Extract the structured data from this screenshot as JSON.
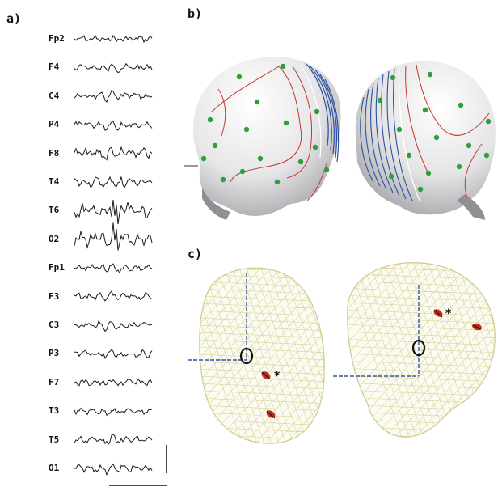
{
  "figure": {
    "panel_a_label": "a)",
    "panel_b_label": "b)",
    "panel_c_label": "c)",
    "asterisk": "*"
  },
  "eeg": {
    "channels": [
      "Fp2",
      "F4",
      "C4",
      "P4",
      "F8",
      "T4",
      "T6",
      "O2",
      "Fp1",
      "F3",
      "C3",
      "P3",
      "F7",
      "T3",
      "T5",
      "O1"
    ],
    "trace_color": "#1a1a1a"
  },
  "colors": {
    "contour_red": "#c0392b",
    "contour_blue": "#2b4fa0",
    "electrode_green": "#2e9e3a",
    "mesh": "#d8d49a",
    "source_red": "#c0281b",
    "axis_blue": "#3a4fa8"
  }
}
